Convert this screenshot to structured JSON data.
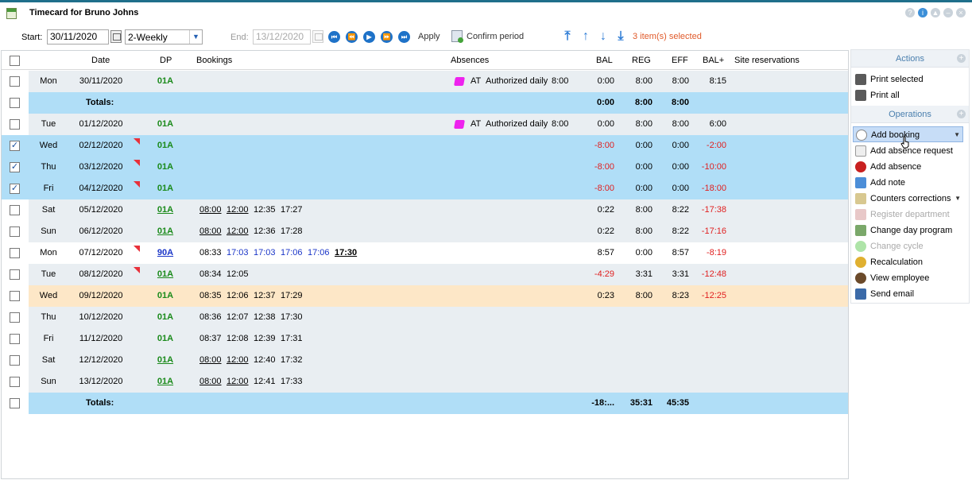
{
  "window": {
    "title": "Timecard for Bruno Johns"
  },
  "toolbar": {
    "start_label": "Start:",
    "start_value": "30/11/2020",
    "period_value": "2-Weekly",
    "end_label": "End:",
    "end_value": "13/12/2020",
    "apply_label": "Apply",
    "confirm_label": "Confirm period",
    "selected_text": "3 item(s) selected"
  },
  "grid": {
    "headers": {
      "date": "Date",
      "dp": "DP",
      "bookings": "Bookings",
      "absences": "Absences",
      "bal": "BAL",
      "reg": "REG",
      "eff": "EFF",
      "balp": "BAL+",
      "site": "Site reservations"
    },
    "rows": [
      {
        "day": "Mon",
        "date": "30/11/2020",
        "dp": "01A",
        "abs_code": "AT",
        "abs_text": "Authorized daily",
        "abs_time": "8:00",
        "bal": "0:00",
        "reg": "8:00",
        "eff": "8:00",
        "balp": "8:15"
      },
      {
        "totals_label": "Totals:",
        "bal": "0:00",
        "reg": "8:00",
        "eff": "8:00"
      },
      {
        "day": "Tue",
        "date": "01/12/2020",
        "dp": "01A",
        "abs_code": "AT",
        "abs_text": "Authorized daily",
        "abs_time": "8:00",
        "bal": "0:00",
        "reg": "8:00",
        "eff": "8:00",
        "balp": "6:00"
      },
      {
        "day": "Wed",
        "date": "02/12/2020",
        "dp": "01A",
        "bal": "-8:00",
        "reg": "0:00",
        "eff": "0:00",
        "balp": "-2:00"
      },
      {
        "day": "Thu",
        "date": "03/12/2020",
        "dp": "01A",
        "bal": "-8:00",
        "reg": "0:00",
        "eff": "0:00",
        "balp": "-10:00"
      },
      {
        "day": "Fri",
        "date": "04/12/2020",
        "dp": "01A",
        "bal": "-8:00",
        "reg": "0:00",
        "eff": "0:00",
        "balp": "-18:00"
      },
      {
        "day": "Sat",
        "date": "05/12/2020",
        "dp": "01A",
        "b1": "08:00",
        "b2": "12:00",
        "b3": "12:35",
        "b4": "17:27",
        "bal": "0:22",
        "reg": "8:00",
        "eff": "8:22",
        "balp": "-17:38"
      },
      {
        "day": "Sun",
        "date": "06/12/2020",
        "dp": "01A",
        "b1": "08:00",
        "b2": "12:00",
        "b3": "12:36",
        "b4": "17:28",
        "bal": "0:22",
        "reg": "8:00",
        "eff": "8:22",
        "balp": "-17:16"
      },
      {
        "day": "Mon",
        "date": "07/12/2020",
        "dp": "90A",
        "b1": "08:33",
        "b2": "17:03",
        "b3": "17:03",
        "b4": "17:06",
        "b5": "17:06",
        "b6": "17:30",
        "bal": "8:57",
        "reg": "0:00",
        "eff": "8:57",
        "balp": "-8:19"
      },
      {
        "day": "Tue",
        "date": "08/12/2020",
        "dp": "01A",
        "b1": "08:34",
        "b2": "12:05",
        "bal": "-4:29",
        "reg": "3:31",
        "eff": "3:31",
        "balp": "-12:48"
      },
      {
        "day": "Wed",
        "date": "09/12/2020",
        "dp": "01A",
        "b1": "08:35",
        "b2": "12:06",
        "b3": "12:37",
        "b4": "17:29",
        "bal": "0:23",
        "reg": "8:00",
        "eff": "8:23",
        "balp": "-12:25"
      },
      {
        "day": "Thu",
        "date": "10/12/2020",
        "dp": "01A",
        "b1": "08:36",
        "b2": "12:07",
        "b3": "12:38",
        "b4": "17:30"
      },
      {
        "day": "Fri",
        "date": "11/12/2020",
        "dp": "01A",
        "b1": "08:37",
        "b2": "12:08",
        "b3": "12:39",
        "b4": "17:31"
      },
      {
        "day": "Sat",
        "date": "12/12/2020",
        "dp": "01A",
        "b1": "08:00",
        "b2": "12:00",
        "b3": "12:40",
        "b4": "17:32"
      },
      {
        "day": "Sun",
        "date": "13/12/2020",
        "dp": "01A",
        "b1": "08:00",
        "b2": "12:00",
        "b3": "12:41",
        "b4": "17:33"
      },
      {
        "totals_label": "Totals:",
        "bal": "-18:...",
        "reg": "35:31",
        "eff": "45:35"
      }
    ]
  },
  "side": {
    "actions_title": "Actions",
    "print_selected": "Print selected",
    "print_all": "Print all",
    "operations_title": "Operations",
    "items": [
      "Add booking",
      "Add absence request",
      "Add absence",
      "Add note",
      "Counters corrections",
      "Register department",
      "Change day program",
      "Change cycle",
      "Recalculation",
      "View employee",
      "Send email"
    ]
  },
  "colors": {
    "selected_row": "#b0def7",
    "negative": "#e02020",
    "dp_green": "#1a8a1a",
    "highlight_row": "#fde7c7"
  }
}
